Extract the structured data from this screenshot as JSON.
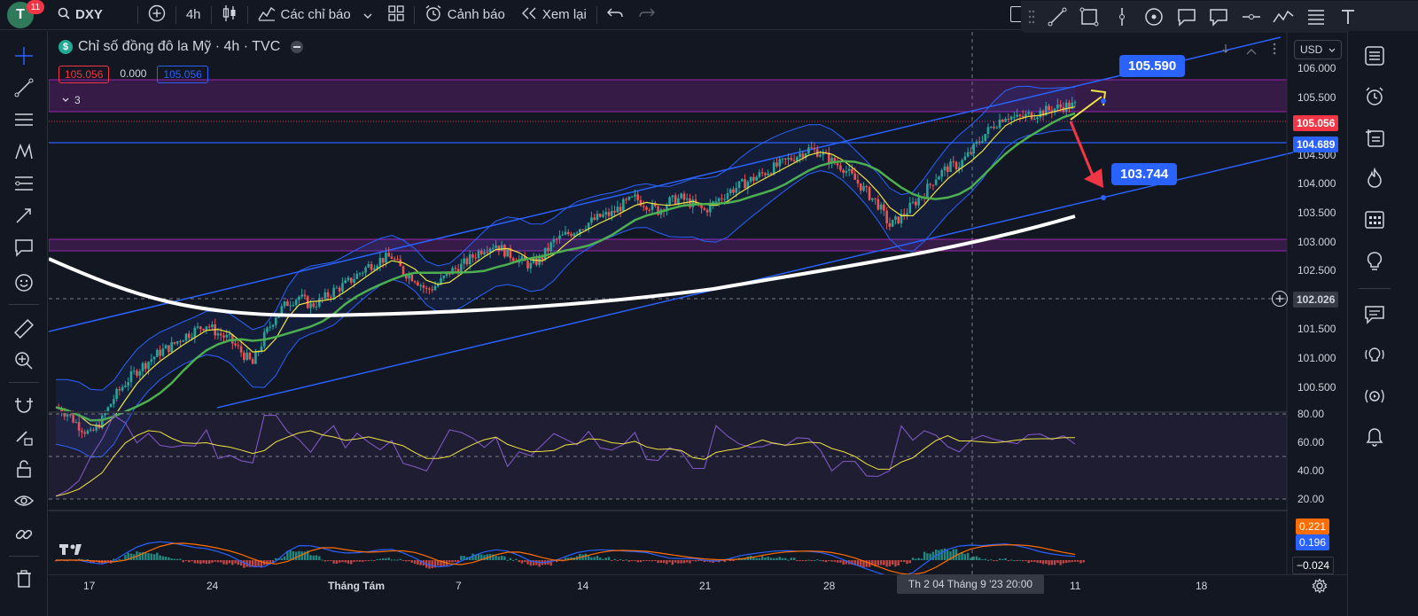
{
  "topbar": {
    "avatar_letter": "T",
    "avatar_badge": "11",
    "symbol": "DXY",
    "interval": "4h",
    "indicators_label": "Các chỉ báo",
    "alert_label": "Cảnh báo",
    "replay_label": "Xem lại"
  },
  "legend": {
    "symbol_badge": "$",
    "title": "Chỉ số đồng đô la Mỹ · 4h · TVC",
    "price_sell": "105.056",
    "spread": "0.000",
    "price_buy": "105.056",
    "collapsed_count": "3"
  },
  "price_axis": {
    "currency": "USD",
    "ticks": [
      "106.000",
      "105.500",
      "105.000",
      "104.500",
      "104.000",
      "103.500",
      "103.000",
      "102.500",
      "102.000",
      "101.500",
      "101.000",
      "100.500"
    ],
    "current_price": "105.056",
    "line_price": "104.689",
    "crosshair_price": "102.026"
  },
  "rsi_axis": {
    "ticks": [
      "80.00",
      "60.00",
      "40.00",
      "20.00"
    ]
  },
  "macd_axis": {
    "macd": "0.221",
    "signal": "0.196",
    "hist": "−0.024"
  },
  "time_axis": {
    "ticks": [
      "17",
      "24",
      "Tháng Tám",
      "7",
      "14",
      "21",
      "28",
      "11",
      "18"
    ],
    "crosshair": "Th 2 04 Tháng 9 '23   20:00"
  },
  "annotations": {
    "target_up": "105.590",
    "target_down": "103.744"
  },
  "colors": {
    "background": "#131722",
    "up": "#26a69a",
    "down": "#ef5350",
    "channel": "#2962ff",
    "zone": "#9c27b0",
    "ema_white": "#ffffff",
    "ema_green": "#4caf50",
    "ema_yellow": "#f0e442",
    "rsi": "#7e57c2"
  },
  "chart_data": {
    "type": "candlestick",
    "symbol": "DXY",
    "interval": "4h",
    "y_range": [
      100.2,
      106.2
    ],
    "x_ticks": [
      "17",
      "24",
      "Tháng Tám",
      "7",
      "14",
      "21",
      "28",
      "11",
      "18"
    ],
    "closes": [
      100.15,
      100.05,
      99.85,
      99.7,
      99.95,
      100.3,
      100.55,
      100.75,
      100.9,
      101.05,
      101.15,
      101.3,
      101.4,
      101.5,
      101.35,
      101.25,
      101.05,
      100.85,
      101.3,
      101.65,
      101.85,
      101.95,
      101.8,
      101.9,
      102.05,
      102.15,
      102.3,
      102.45,
      102.55,
      102.6,
      102.35,
      102.25,
      102.05,
      102.15,
      102.35,
      102.45,
      102.6,
      102.75,
      102.8,
      102.65,
      102.55,
      102.45,
      102.6,
      102.85,
      102.95,
      103.05,
      103.15,
      103.25,
      103.3,
      103.45,
      103.55,
      103.45,
      103.35,
      103.5,
      103.55,
      103.45,
      103.35,
      103.5,
      103.65,
      103.75,
      103.85,
      103.95,
      104.05,
      104.15,
      104.25,
      104.35,
      104.3,
      104.15,
      104.05,
      103.85,
      103.65,
      103.45,
      103.1,
      103.25,
      103.45,
      103.65,
      103.9,
      104.05,
      104.1,
      104.3,
      104.55,
      104.75,
      104.9,
      104.85,
      104.9,
      104.95,
      105.0,
      105.05,
      105.06
    ],
    "indicators": {
      "RSI": {
        "range": [
          20,
          80
        ],
        "levels": [
          30,
          50,
          70
        ]
      },
      "MACD": {
        "macd": 0.221,
        "signal": 0.196,
        "histogram": -0.024
      }
    },
    "annotations": [
      {
        "label": "105.590",
        "type": "price-target"
      },
      {
        "label": "103.744",
        "type": "price-target"
      }
    ]
  }
}
